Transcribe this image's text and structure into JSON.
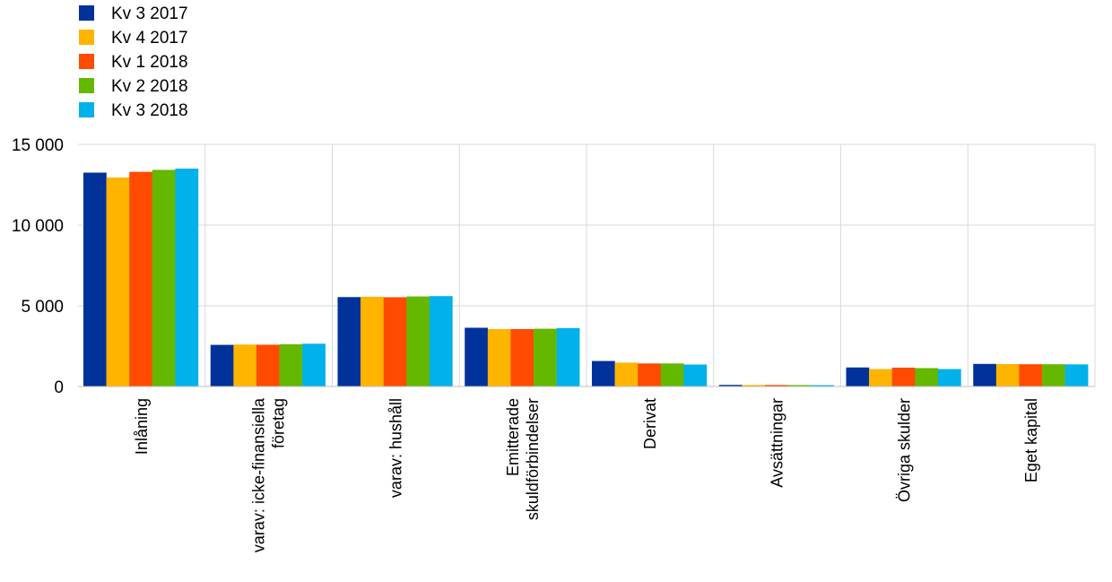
{
  "chart_data": {
    "type": "bar",
    "title": "",
    "xlabel": "",
    "ylabel": "",
    "ylim": [
      0,
      15000
    ],
    "yticks": [
      0,
      5000,
      10000,
      15000
    ],
    "ytick_labels": [
      "0",
      "5 000",
      "10 000",
      "15 000"
    ],
    "grid": true,
    "legend_position": "top-left",
    "categories": [
      [
        "Inlåning"
      ],
      [
        "varav: icke-finansiella",
        "företag"
      ],
      [
        "varav: hushåll"
      ],
      [
        "Emitterade",
        "skuldförbindelser"
      ],
      [
        "Derivat"
      ],
      [
        "Avsättningar"
      ],
      [
        "Övriga skulder"
      ],
      [
        "Eget kapital"
      ]
    ],
    "series": [
      {
        "name": "Kv 3 2017",
        "color": "#003299",
        "values": [
          13250,
          2580,
          5540,
          3640,
          1580,
          100,
          1180,
          1400
        ]
      },
      {
        "name": "Kv 4 2017",
        "color": "#FFB400",
        "values": [
          12950,
          2600,
          5560,
          3560,
          1480,
          95,
          1080,
          1390
        ]
      },
      {
        "name": "Kv 1 2018",
        "color": "#FF4B00",
        "values": [
          13300,
          2590,
          5530,
          3560,
          1430,
          95,
          1170,
          1380
        ]
      },
      {
        "name": "Kv 2 2018",
        "color": "#65B800",
        "values": [
          13420,
          2620,
          5580,
          3580,
          1430,
          90,
          1140,
          1380
        ]
      },
      {
        "name": "Kv 3 2018",
        "color": "#00B1EA",
        "values": [
          13500,
          2650,
          5600,
          3620,
          1360,
          85,
          1080,
          1370
        ]
      }
    ]
  }
}
